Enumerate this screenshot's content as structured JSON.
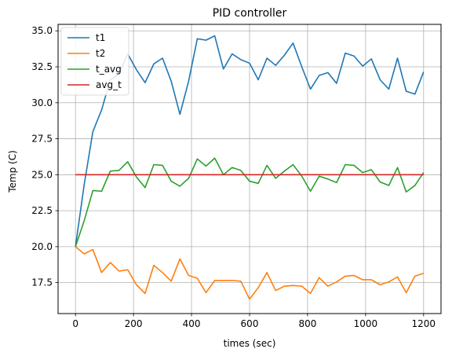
{
  "chart_data": {
    "type": "line",
    "title": "PID controller",
    "xlabel": "times (sec)",
    "ylabel": "Temp (C)",
    "xlim": [
      -60,
      1260
    ],
    "ylim": [
      15.35,
      35.45
    ],
    "xticks": [
      0,
      200,
      400,
      600,
      800,
      1000,
      1200
    ],
    "xtick_labels": [
      "0",
      "200",
      "400",
      "600",
      "800",
      "1000",
      "1200"
    ],
    "yticks": [
      17.5,
      20.0,
      22.5,
      25.0,
      27.5,
      30.0,
      32.5,
      35.0
    ],
    "ytick_labels": [
      "17.5",
      "20.0",
      "22.5",
      "25.0",
      "27.5",
      "30.0",
      "32.5",
      "35.0"
    ],
    "grid": true,
    "legend_position": "top-left",
    "x": [
      0,
      30,
      60,
      90,
      120,
      150,
      180,
      210,
      240,
      270,
      300,
      330,
      360,
      390,
      420,
      450,
      480,
      510,
      540,
      570,
      600,
      630,
      660,
      690,
      720,
      750,
      780,
      810,
      840,
      870,
      900,
      930,
      960,
      990,
      1020,
      1050,
      1080,
      1110,
      1140,
      1170,
      1200
    ],
    "series": [
      {
        "name": "t1",
        "color": "#1f77b4",
        "values": [
          20.0,
          24.3,
          28.0,
          29.5,
          31.6,
          32.0,
          33.4,
          32.3,
          31.4,
          32.7,
          33.1,
          31.5,
          29.2,
          31.5,
          34.45,
          34.35,
          34.65,
          32.35,
          33.4,
          33.0,
          32.75,
          31.6,
          33.1,
          32.6,
          33.3,
          34.15,
          32.5,
          30.95,
          31.9,
          32.1,
          31.35,
          33.45,
          33.25,
          32.55,
          33.05,
          31.6,
          30.95,
          33.1,
          30.8,
          30.6,
          32.15
        ]
      },
      {
        "name": "t2",
        "color": "#ff7f0e",
        "values": [
          20.0,
          19.5,
          19.8,
          18.2,
          18.9,
          18.3,
          18.4,
          17.35,
          16.75,
          18.7,
          18.2,
          17.6,
          19.15,
          18.0,
          17.8,
          16.8,
          17.65,
          17.65,
          17.65,
          17.6,
          16.35,
          17.15,
          18.2,
          16.95,
          17.25,
          17.3,
          17.25,
          16.75,
          17.85,
          17.25,
          17.55,
          17.95,
          18.0,
          17.7,
          17.7,
          17.35,
          17.55,
          17.9,
          16.8,
          17.95,
          18.15
        ]
      },
      {
        "name": "t_avg",
        "color": "#2ca02c",
        "values": [
          20.0,
          21.8,
          23.9,
          23.85,
          25.25,
          25.3,
          25.9,
          24.85,
          24.1,
          25.7,
          25.65,
          24.55,
          24.2,
          24.75,
          26.1,
          25.6,
          26.15,
          25.0,
          25.5,
          25.3,
          24.55,
          24.4,
          25.65,
          24.75,
          25.25,
          25.7,
          24.9,
          23.85,
          24.9,
          24.7,
          24.45,
          25.7,
          25.65,
          25.15,
          25.35,
          24.5,
          24.25,
          25.5,
          23.8,
          24.25,
          25.15
        ]
      },
      {
        "name": "avg_t",
        "color": "#d62728",
        "values": [
          25.0,
          25.0,
          25.0,
          25.0,
          25.0,
          25.0,
          25.0,
          25.0,
          25.0,
          25.0,
          25.0,
          25.0,
          25.0,
          25.0,
          25.0,
          25.0,
          25.0,
          25.0,
          25.0,
          25.0,
          25.0,
          25.0,
          25.0,
          25.0,
          25.0,
          25.0,
          25.0,
          25.0,
          25.0,
          25.0,
          25.0,
          25.0,
          25.0,
          25.0,
          25.0,
          25.0,
          25.0,
          25.0,
          25.0,
          25.0,
          25.0
        ]
      }
    ]
  }
}
